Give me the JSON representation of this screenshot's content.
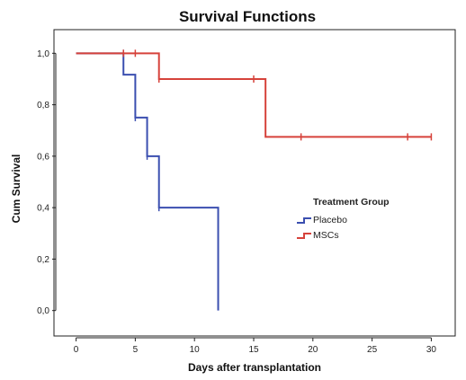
{
  "chart_data": {
    "type": "line",
    "title": "Survival Functions",
    "xlabel": "Days after transplantation",
    "ylabel": "Cum Survival",
    "xlim": [
      -0.5,
      30.5
    ],
    "ylim": [
      -0.05,
      1.05
    ],
    "x_ticks": [
      0,
      5,
      10,
      15,
      20,
      25,
      30
    ],
    "x_tick_labels": [
      "0",
      "5",
      "10",
      "15",
      "20",
      "25",
      "30"
    ],
    "y_ticks": [
      0.0,
      0.2,
      0.4,
      0.6,
      0.8,
      1.0
    ],
    "y_tick_labels": [
      "0,0",
      "0,2",
      "0,4",
      "0,6",
      "0,8",
      "1,0"
    ],
    "grid": false,
    "legend": {
      "title": "Treatment Group",
      "placement": "right-middle"
    },
    "series": [
      {
        "name": "Placebo",
        "color": "#3b4fb0",
        "step": [
          [
            0,
            1.0
          ],
          [
            4,
            1.0
          ],
          [
            4,
            0.917
          ],
          [
            5,
            0.917
          ],
          [
            5,
            0.75
          ],
          [
            6,
            0.75
          ],
          [
            6,
            0.6
          ],
          [
            7,
            0.6
          ],
          [
            7,
            0.4
          ],
          [
            12,
            0.4
          ],
          [
            12,
            0.0
          ]
        ],
        "censored": [
          [
            4,
            1.0
          ],
          [
            5,
            0.75
          ],
          [
            6,
            0.6
          ],
          [
            7,
            0.4
          ]
        ]
      },
      {
        "name": "MSCs",
        "color": "#d6423b",
        "step": [
          [
            0,
            1.0
          ],
          [
            7,
            1.0
          ],
          [
            7,
            0.9
          ],
          [
            16,
            0.9
          ],
          [
            16,
            0.675
          ],
          [
            30,
            0.675
          ]
        ],
        "censored": [
          [
            4,
            1.0
          ],
          [
            5,
            1.0
          ],
          [
            7,
            0.9
          ],
          [
            15,
            0.9
          ],
          [
            19,
            0.675
          ],
          [
            28,
            0.675
          ],
          [
            30,
            0.675
          ]
        ]
      }
    ]
  }
}
